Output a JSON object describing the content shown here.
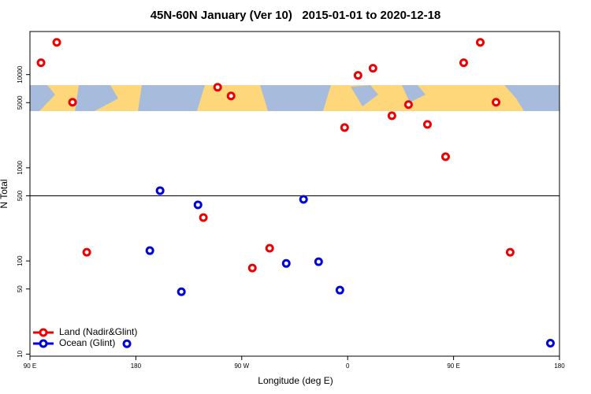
{
  "chart_data": {
    "type": "scatter",
    "title": "45N-60N January (Ver 10)   2015-01-01 to 2020-12-18",
    "x_label": "Longitude (deg E)",
    "y_label": "N Total",
    "log_y": true,
    "legend": "bottom-left",
    "hline": 500,
    "xlim": [
      90,
      540
    ],
    "xticks": [
      {
        "value": 90,
        "label": "90 E"
      },
      180,
      {
        "value": 270,
        "label": "90 W"
      },
      {
        "value": 360,
        "label": "0"
      },
      {
        "value": 450,
        "label": "90 E"
      },
      {
        "value": 540,
        "label": "180"
      }
    ],
    "ylim": [
      9.5,
      29000
    ],
    "yticks": [
      10,
      50,
      100,
      500,
      1000,
      5000,
      10000
    ],
    "series": [
      {
        "name": "Land (Nadir&Glint)",
        "color": "#ee0000",
        "x": [
          99.4,
          112.8,
          126.2,
          138.3,
          237.4,
          249.5,
          260.9,
          279,
          293.7,
          357.4,
          368.8,
          381.5,
          397.6,
          411.7,
          427.8,
          443.2,
          458.6,
          472.7,
          486.1,
          498.1
        ],
        "values": [
          13400,
          22200,
          5050,
          124,
          292,
          7320,
          5900,
          84,
          137,
          2700,
          9820,
          11700,
          3620,
          4760,
          2920,
          1315,
          13400,
          22200,
          5050,
          124
        ]
      },
      {
        "name": "Ocean (Glint)",
        "color": "#0000dd",
        "x": [
          172.4,
          191.9,
          200.6,
          218.7,
          232.8,
          307.8,
          322.5,
          335.3,
          353.4,
          532.3
        ],
        "values": [
          12.9,
          129,
          568,
          46.7,
          400,
          94,
          458,
          98,
          48.6,
          13.1
        ]
      }
    ]
  }
}
